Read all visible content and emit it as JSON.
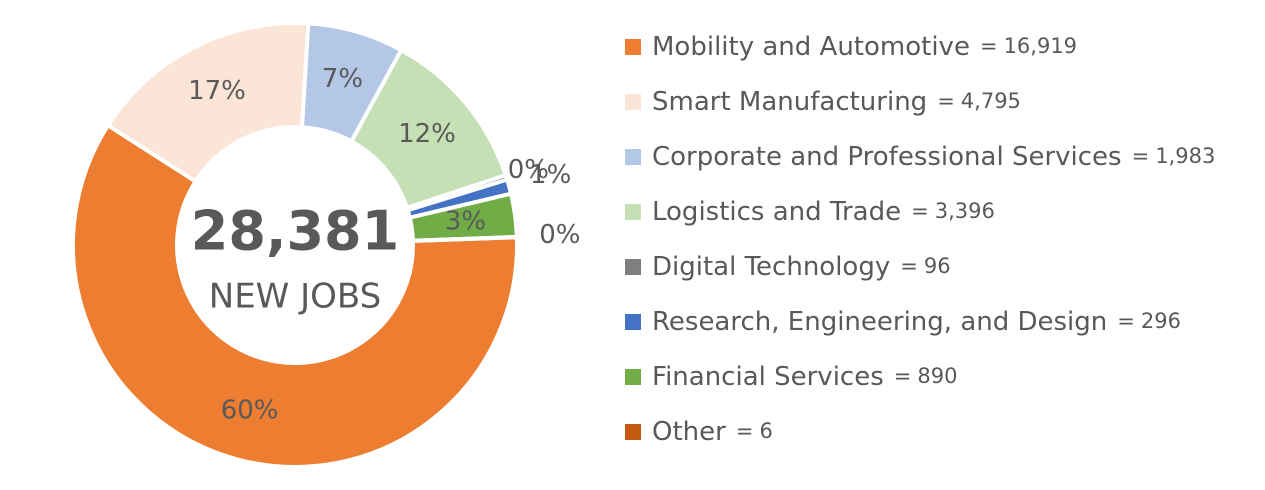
{
  "chart_data": {
    "type": "donut",
    "categories": [
      "Mobility and Automotive",
      "Smart Manufacturing",
      "Corporate and Professional Services",
      "Logistics and Trade",
      "Digital Technology",
      "Research, Engineering, and Design",
      "Financial Services",
      "Other"
    ],
    "values": [
      16919,
      4795,
      1983,
      3396,
      96,
      296,
      890,
      6
    ],
    "value_labels": [
      "16,919",
      "4,795",
      "1,983",
      "3,396",
      "96",
      "296",
      "890",
      "6"
    ],
    "percent_labels": [
      "60%",
      "17%",
      "7%",
      "12%",
      "0%",
      "1%",
      "3%",
      "0%"
    ],
    "colors": [
      "#ed7d31",
      "#fbe5d6",
      "#b4c7e7",
      "#c5e0b4",
      "#7f7f7f",
      "#4472c4",
      "#70ad47",
      "#c55a11"
    ],
    "legend_separator": "=",
    "total_label": "28,381",
    "total_caption": "NEW JOBS",
    "legend": "right"
  }
}
